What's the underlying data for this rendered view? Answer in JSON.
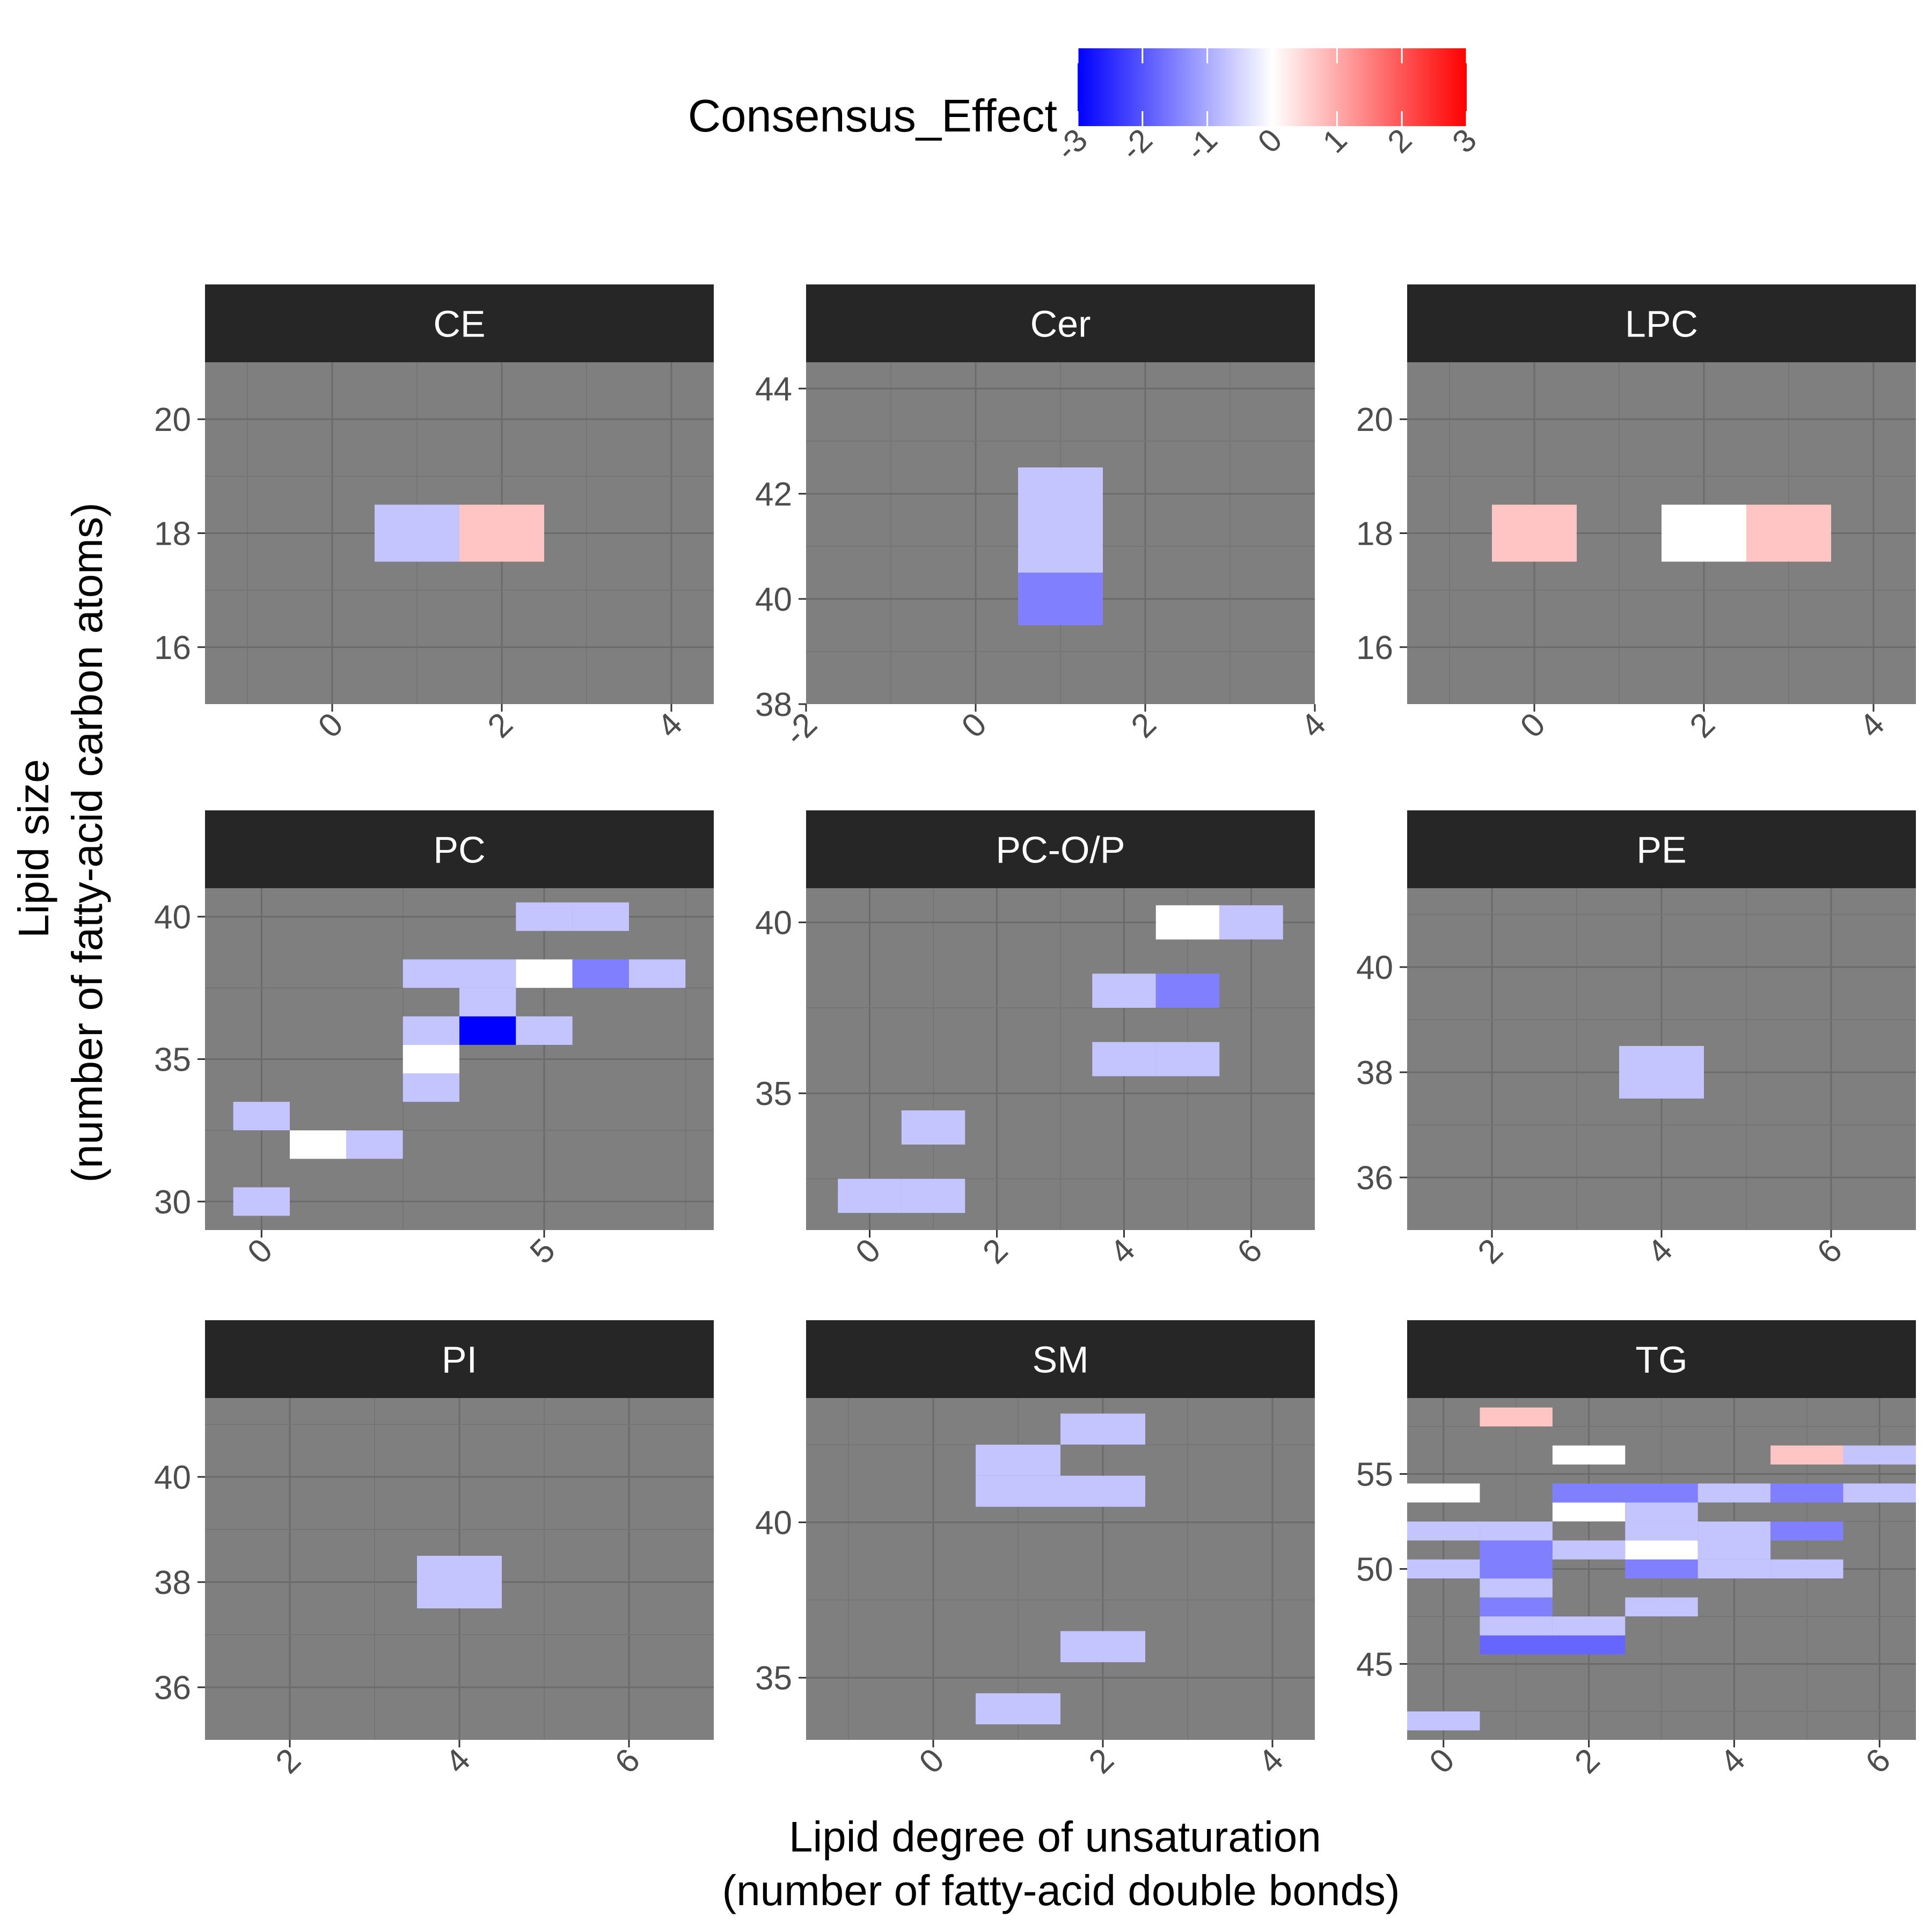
{
  "chart_data": {
    "type": "heatmap",
    "xlabel": [
      "Lipid degree of unsaturation",
      "(number of fatty-acid double bonds)"
    ],
    "ylabel": [
      "Lipid size",
      "(number of fatty-acid carbon atoms)"
    ],
    "legend": {
      "title": "Consensus_Effect",
      "position": "top",
      "min": -3,
      "max": 3,
      "ticks": [
        -3,
        -2,
        -1,
        0,
        1,
        2,
        3
      ],
      "colors": {
        "low": "#0000ff",
        "mid": "#ffffff",
        "high": "#ff0000"
      }
    },
    "panel_background": "#7f7f7f",
    "strip_background": "#262626",
    "grid": true,
    "facets": [
      {
        "name": "CE",
        "xlim": [
          -1.5,
          4.5
        ],
        "ylim": [
          15,
          21
        ],
        "xticks": [
          0,
          2,
          4
        ],
        "yticks": [
          16,
          18,
          20
        ],
        "tiles": [
          {
            "x": 1,
            "y": 18,
            "value": -0.7
          },
          {
            "x": 2,
            "y": 18,
            "value": 0.7
          }
        ]
      },
      {
        "name": "Cer",
        "xlim": [
          -2,
          4
        ],
        "ylim": [
          38,
          44.5
        ],
        "xticks": [
          -2,
          0,
          2,
          4
        ],
        "yticks": [
          38,
          40,
          42,
          44
        ],
        "tiles": [
          {
            "x": 1,
            "y": 40,
            "value": -1.5
          },
          {
            "x": 1,
            "y": 41,
            "value": -0.7
          },
          {
            "x": 1,
            "y": 42,
            "value": -0.7
          }
        ]
      },
      {
        "name": "LPC",
        "xlim": [
          -1.5,
          4.5
        ],
        "ylim": [
          15,
          21
        ],
        "xticks": [
          0,
          2,
          4
        ],
        "yticks": [
          16,
          18,
          20
        ],
        "tiles": [
          {
            "x": 0,
            "y": 18,
            "value": 0.7
          },
          {
            "x": 2,
            "y": 18,
            "value": 0
          },
          {
            "x": 3,
            "y": 18,
            "value": 0.7
          }
        ]
      },
      {
        "name": "PC",
        "xlim": [
          -1,
          8
        ],
        "ylim": [
          29,
          41
        ],
        "xticks": [
          0,
          5
        ],
        "yticks": [
          30,
          35,
          40
        ],
        "tiles": [
          {
            "x": 0,
            "y": 30,
            "value": -0.7
          },
          {
            "x": 0,
            "y": 33,
            "value": -0.7
          },
          {
            "x": 1,
            "y": 32,
            "value": 0
          },
          {
            "x": 2,
            "y": 32,
            "value": -0.7
          },
          {
            "x": 3,
            "y": 34,
            "value": -0.7
          },
          {
            "x": 3,
            "y": 35,
            "value": 0
          },
          {
            "x": 3,
            "y": 36,
            "value": -0.7
          },
          {
            "x": 4,
            "y": 36,
            "value": -3
          },
          {
            "x": 5,
            "y": 36,
            "value": -0.7
          },
          {
            "x": 4,
            "y": 37,
            "value": -0.7
          },
          {
            "x": 3,
            "y": 38,
            "value": -0.7
          },
          {
            "x": 4,
            "y": 38,
            "value": -0.7
          },
          {
            "x": 5,
            "y": 38,
            "value": 0
          },
          {
            "x": 6,
            "y": 38,
            "value": -1.5
          },
          {
            "x": 7,
            "y": 38,
            "value": -0.7
          },
          {
            "x": 5,
            "y": 40,
            "value": -0.7
          },
          {
            "x": 6,
            "y": 40,
            "value": -0.7
          }
        ]
      },
      {
        "name": "PC-O/P",
        "xlim": [
          -1,
          7
        ],
        "ylim": [
          31,
          41
        ],
        "xticks": [
          0,
          2,
          4,
          6
        ],
        "yticks": [
          35,
          40
        ],
        "tiles": [
          {
            "x": 0,
            "y": 32,
            "value": -0.7
          },
          {
            "x": 1,
            "y": 32,
            "value": -0.7
          },
          {
            "x": 1,
            "y": 34,
            "value": -0.7
          },
          {
            "x": 4,
            "y": 36,
            "value": -0.7
          },
          {
            "x": 5,
            "y": 36,
            "value": -0.7
          },
          {
            "x": 4,
            "y": 38,
            "value": -0.7
          },
          {
            "x": 5,
            "y": 38,
            "value": -1.5
          },
          {
            "x": 5,
            "y": 40,
            "value": 0
          },
          {
            "x": 6,
            "y": 40,
            "value": -0.7
          }
        ]
      },
      {
        "name": "PE",
        "xlim": [
          1,
          7
        ],
        "ylim": [
          35,
          41.5
        ],
        "xticks": [
          2,
          4,
          6
        ],
        "yticks": [
          36,
          38,
          40
        ],
        "tiles": [
          {
            "x": 4,
            "y": 38,
            "value": -0.7
          }
        ]
      },
      {
        "name": "PI",
        "xlim": [
          1,
          7
        ],
        "ylim": [
          35,
          41.5
        ],
        "xticks": [
          2,
          4,
          6
        ],
        "yticks": [
          36,
          38,
          40
        ],
        "tiles": [
          {
            "x": 4,
            "y": 38,
            "value": -0.7
          }
        ]
      },
      {
        "name": "SM",
        "xlim": [
          -1.5,
          4.5
        ],
        "ylim": [
          33,
          44
        ],
        "xticks": [
          0,
          2,
          4
        ],
        "yticks": [
          35,
          40
        ],
        "tiles": [
          {
            "x": 1,
            "y": 34,
            "value": -0.7
          },
          {
            "x": 2,
            "y": 36,
            "value": -0.7
          },
          {
            "x": 1,
            "y": 41,
            "value": -0.7
          },
          {
            "x": 2,
            "y": 41,
            "value": -0.7
          },
          {
            "x": 1,
            "y": 42,
            "value": -0.7
          },
          {
            "x": 2,
            "y": 43,
            "value": -0.7
          }
        ]
      },
      {
        "name": "TG",
        "xlim": [
          -0.5,
          6.5
        ],
        "ylim": [
          41,
          59
        ],
        "xticks": [
          0,
          2,
          4,
          6
        ],
        "yticks": [
          45,
          50,
          55
        ],
        "tiles": [
          {
            "x": 0,
            "y": 42,
            "value": -0.7
          },
          {
            "x": 0,
            "y": 50,
            "value": -0.7
          },
          {
            "x": 0,
            "y": 52,
            "value": -0.7
          },
          {
            "x": 0,
            "y": 54,
            "value": 0
          },
          {
            "x": 1,
            "y": 46,
            "value": -1.8
          },
          {
            "x": 1,
            "y": 47,
            "value": -0.7
          },
          {
            "x": 1,
            "y": 48,
            "value": -1.5
          },
          {
            "x": 1,
            "y": 49,
            "value": -0.7
          },
          {
            "x": 1,
            "y": 50,
            "value": -1.5
          },
          {
            "x": 1,
            "y": 51,
            "value": -1.5
          },
          {
            "x": 1,
            "y": 52,
            "value": -0.7
          },
          {
            "x": 1,
            "y": 58,
            "value": 0.7
          },
          {
            "x": 2,
            "y": 46,
            "value": -1.8
          },
          {
            "x": 2,
            "y": 47,
            "value": -0.7
          },
          {
            "x": 2,
            "y": 51,
            "value": -0.7
          },
          {
            "x": 2,
            "y": 53,
            "value": 0
          },
          {
            "x": 2,
            "y": 54,
            "value": -1.5
          },
          {
            "x": 2,
            "y": 56,
            "value": 0
          },
          {
            "x": 3,
            "y": 48,
            "value": -0.7
          },
          {
            "x": 3,
            "y": 50,
            "value": -1.5
          },
          {
            "x": 3,
            "y": 51,
            "value": 0
          },
          {
            "x": 3,
            "y": 52,
            "value": -0.7
          },
          {
            "x": 3,
            "y": 53,
            "value": -0.7
          },
          {
            "x": 3,
            "y": 54,
            "value": -1.5
          },
          {
            "x": 4,
            "y": 50,
            "value": -0.7
          },
          {
            "x": 4,
            "y": 51,
            "value": -0.7
          },
          {
            "x": 4,
            "y": 52,
            "value": -0.7
          },
          {
            "x": 4,
            "y": 54,
            "value": -0.7
          },
          {
            "x": 5,
            "y": 50,
            "value": -0.7
          },
          {
            "x": 5,
            "y": 52,
            "value": -1.5
          },
          {
            "x": 5,
            "y": 54,
            "value": -1.5
          },
          {
            "x": 5,
            "y": 56,
            "value": 0.7
          },
          {
            "x": 6,
            "y": 54,
            "value": -0.7
          },
          {
            "x": 6,
            "y": 56,
            "value": -0.7
          }
        ]
      }
    ]
  }
}
